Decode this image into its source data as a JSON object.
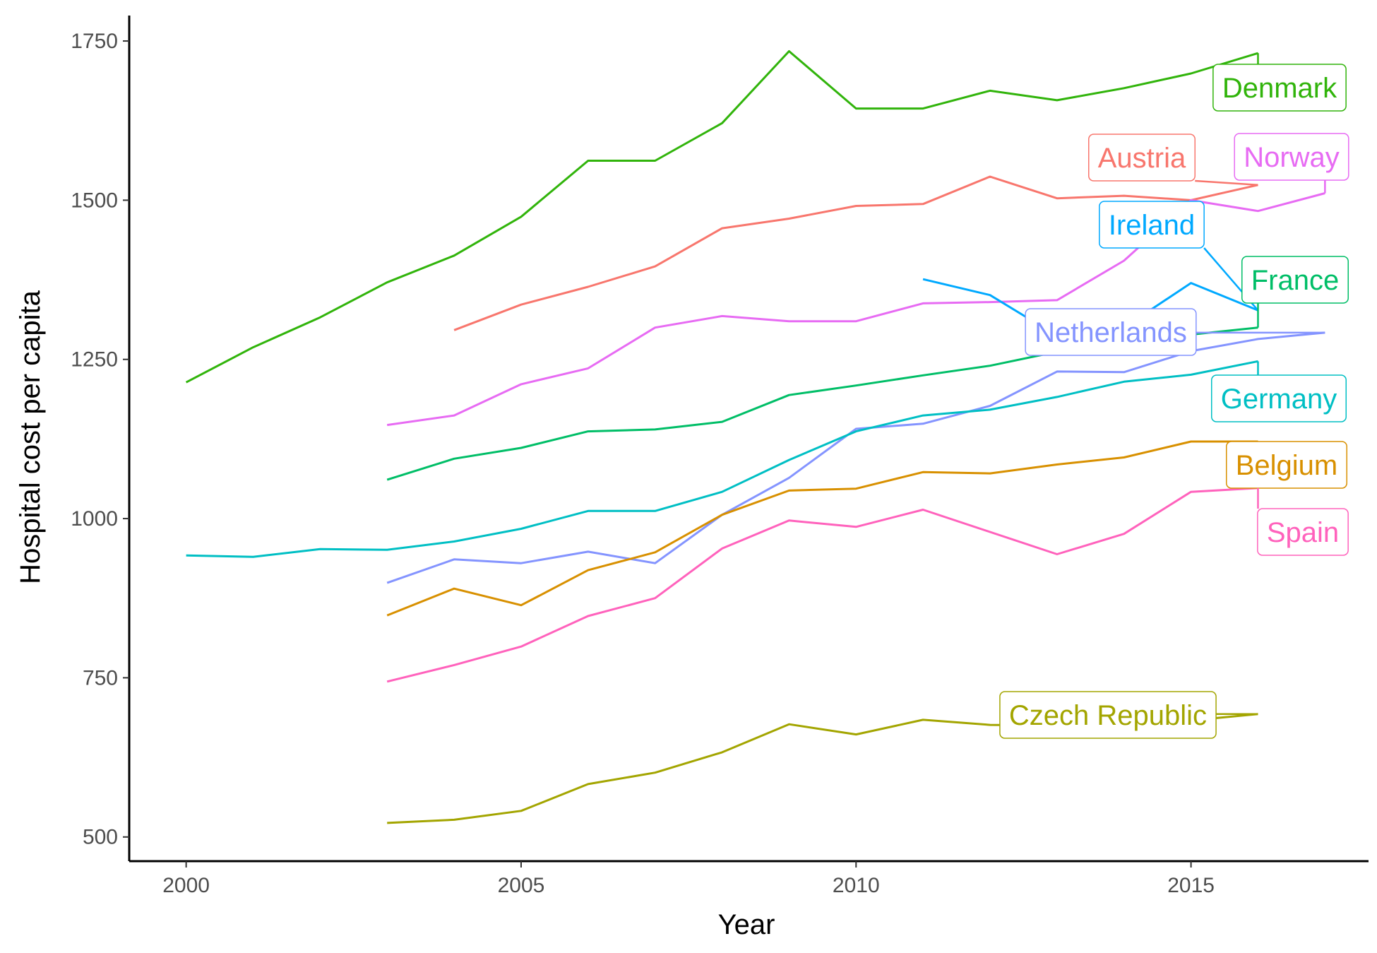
{
  "chart_data": {
    "type": "line",
    "title": "",
    "xlabel": "Year",
    "ylabel": "Hospital cost per capita",
    "xlim": [
      1999.15,
      2017.65
    ],
    "ylim": [
      462,
      1790
    ],
    "x_ticks": [
      2000,
      2005,
      2010,
      2015
    ],
    "y_ticks": [
      500,
      750,
      1000,
      1250,
      1500,
      1750
    ],
    "x_tick_labels": [
      "2000",
      "2005",
      "2010",
      "2015"
    ],
    "y_tick_labels": [
      "500",
      "750",
      "1000",
      "1250",
      "1500",
      "1750"
    ],
    "grid": false,
    "legend": "direct labels at line ends",
    "series": [
      {
        "name": "Denmark",
        "color": "#31B40B",
        "x": [
          2000,
          2001,
          2002,
          2003,
          2004,
          2005,
          2006,
          2007,
          2008,
          2009,
          2010,
          2011,
          2012,
          2013,
          2014,
          2015,
          2016
        ],
        "y": [
          1214,
          1269,
          1316,
          1371,
          1413,
          1474,
          1562,
          1562,
          1621,
          1734,
          1644,
          1644,
          1672,
          1657,
          1676,
          1699,
          1731
        ]
      },
      {
        "name": "Austria",
        "color": "#F8766D",
        "x": [
          2004,
          2005,
          2006,
          2007,
          2008,
          2009,
          2010,
          2011,
          2012,
          2013,
          2014,
          2015,
          2016
        ],
        "y": [
          1296,
          1336,
          1364,
          1396,
          1456,
          1471,
          1491,
          1494,
          1537,
          1503,
          1507,
          1500,
          1524
        ]
      },
      {
        "name": "Norway",
        "color": "#E76BF3",
        "x": [
          2003,
          2004,
          2005,
          2006,
          2007,
          2008,
          2009,
          2010,
          2011,
          2012,
          2013,
          2014,
          2015,
          2016,
          2017
        ],
        "y": [
          1147,
          1162,
          1211,
          1236,
          1300,
          1318,
          1310,
          1310,
          1338,
          1340,
          1343,
          1405,
          1500,
          1483,
          1511
        ]
      },
      {
        "name": "Ireland",
        "color": "#00A9FF",
        "x": [
          2011,
          2012,
          2013,
          2014,
          2015,
          2016
        ],
        "y": [
          1376,
          1351,
          1287,
          1300,
          1370,
          1327
        ]
      },
      {
        "name": "France",
        "color": "#00BE67",
        "x": [
          2003,
          2004,
          2005,
          2006,
          2007,
          2008,
          2009,
          2010,
          2011,
          2012,
          2013,
          2014,
          2015,
          2016
        ],
        "y": [
          1061,
          1094,
          1111,
          1137,
          1140,
          1152,
          1194,
          1209,
          1225,
          1240,
          1262,
          1270,
          1289,
          1300
        ]
      },
      {
        "name": "Netherlands",
        "color": "#8494FF",
        "x": [
          2003,
          2004,
          2005,
          2006,
          2007,
          2008,
          2009,
          2010,
          2011,
          2012,
          2013,
          2014,
          2015,
          2016,
          2017
        ],
        "y": [
          899,
          936,
          930,
          948,
          930,
          1006,
          1064,
          1141,
          1149,
          1177,
          1231,
          1230,
          1263,
          1282,
          1292
        ]
      },
      {
        "name": "Germany",
        "color": "#00BFC4",
        "x": [
          2000,
          2001,
          2002,
          2003,
          2004,
          2005,
          2006,
          2007,
          2008,
          2009,
          2010,
          2011,
          2012,
          2013,
          2014,
          2015,
          2016
        ],
        "y": [
          942,
          940,
          952,
          951,
          964,
          984,
          1012,
          1012,
          1042,
          1092,
          1137,
          1162,
          1171,
          1191,
          1215,
          1226,
          1247
        ]
      },
      {
        "name": "Belgium",
        "color": "#D89000",
        "x": [
          2003,
          2004,
          2005,
          2006,
          2007,
          2008,
          2009,
          2010,
          2011,
          2012,
          2013,
          2014,
          2015,
          2016
        ],
        "y": [
          848,
          890,
          864,
          919,
          947,
          1006,
          1044,
          1047,
          1073,
          1071,
          1085,
          1096,
          1121,
          1121
        ]
      },
      {
        "name": "Spain",
        "color": "#FF62BC",
        "x": [
          2003,
          2004,
          2005,
          2006,
          2007,
          2008,
          2009,
          2010,
          2011,
          2012,
          2013,
          2014,
          2015,
          2016
        ],
        "y": [
          744,
          770,
          799,
          847,
          875,
          953,
          997,
          987,
          1014,
          979,
          944,
          976,
          1042,
          1048
        ]
      },
      {
        "name": "Czech Republic",
        "color": "#A3A500",
        "x": [
          2003,
          2004,
          2005,
          2006,
          2007,
          2008,
          2009,
          2010,
          2011,
          2012,
          2013,
          2014,
          2015,
          2016
        ],
        "y": [
          522,
          527,
          541,
          583,
          601,
          633,
          677,
          661,
          684,
          676,
          675,
          680,
          683,
          693
        ]
      }
    ]
  }
}
